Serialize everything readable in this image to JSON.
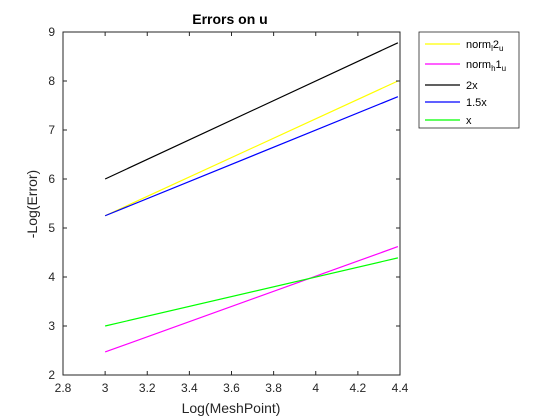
{
  "chart_data": {
    "type": "line",
    "title": "Errors on u",
    "xlabel": "Log(MeshPoint)",
    "ylabel": "-Log(Error)",
    "xlim": [
      2.8,
      4.4
    ],
    "ylim": [
      2,
      9
    ],
    "xticks": [
      "2.8",
      "3",
      "3.2",
      "3.4",
      "3.6",
      "3.8",
      "4",
      "4.2",
      "4.4"
    ],
    "yticks": [
      "2",
      "3",
      "4",
      "5",
      "6",
      "7",
      "8",
      "9"
    ],
    "grid": false,
    "legend_position": "outside-top-right",
    "series": [
      {
        "name": "norm_l2_u",
        "label_main": "norm",
        "label_sub1": "l",
        "label_mid": "2",
        "label_sub2": "u",
        "color": "#ffff00",
        "x": [
          3,
          4.39
        ],
        "y": [
          5.25,
          8.0
        ]
      },
      {
        "name": "norm_h1_u",
        "label_main": "norm",
        "label_sub1": "h",
        "label_mid": "1",
        "label_sub2": "u",
        "color": "#ff00ff",
        "x": [
          3,
          4.39
        ],
        "y": [
          2.47,
          4.62
        ]
      },
      {
        "name": "2x",
        "label_main": "2x",
        "color": "#000000",
        "x": [
          3,
          4.39
        ],
        "y": [
          6.0,
          8.78
        ]
      },
      {
        "name": "1.5x",
        "label_main": "1.5x",
        "color": "#0000ff",
        "x": [
          3,
          4.39
        ],
        "y": [
          5.25,
          7.68
        ]
      },
      {
        "name": "x",
        "label_main": "x",
        "color": "#00ff00",
        "x": [
          3,
          4.39
        ],
        "y": [
          3.0,
          4.39
        ]
      }
    ]
  }
}
